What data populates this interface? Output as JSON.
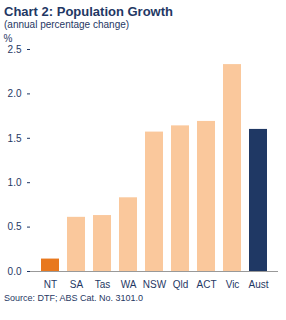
{
  "chart_data": {
    "type": "bar",
    "title": "Chart 2: Population Growth",
    "subtitle": "(annual percentage change)",
    "y_label": "%",
    "source": "Source: DTF; ABS Cat. No. 3101.0",
    "categories": [
      "NT",
      "SA",
      "Tas",
      "WA",
      "NSW",
      "Qld",
      "ACT",
      "Vic",
      "Aust"
    ],
    "values": [
      0.14,
      0.61,
      0.63,
      0.83,
      1.57,
      1.64,
      1.69,
      2.33,
      1.6
    ],
    "colors": [
      "#e8781e",
      "#fac89c",
      "#fac89c",
      "#fac89c",
      "#fac89c",
      "#fac89c",
      "#fac89c",
      "#fac89c",
      "#1f3864"
    ],
    "ylim": [
      0,
      2.5
    ],
    "yticks": [
      {
        "value": 0,
        "label": "0.0"
      },
      {
        "value": 0.5,
        "label": "0.5"
      },
      {
        "value": 1,
        "label": "1.0"
      },
      {
        "value": 1.5,
        "label": "1.5"
      },
      {
        "value": 2,
        "label": "2.0"
      },
      {
        "value": 2.5,
        "label": "2.5"
      }
    ],
    "grid": false
  }
}
